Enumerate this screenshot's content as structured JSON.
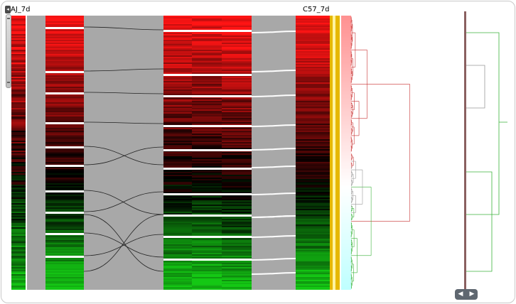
{
  "window": {
    "title": ""
  },
  "sample_labels": {
    "left": "AJ_7d",
    "right": "C57_7d"
  },
  "controls": {
    "collapse_glyph": "◂",
    "scroll_left_glyph": "◀",
    "scroll_right_glyph": "▶"
  },
  "icons": {
    "collapse": "collapse-left-icon",
    "scroll_left": "arrow-left-icon",
    "scroll_right": "arrow-right-icon"
  },
  "colors": {
    "up": "#ff1a1a",
    "mid": "#000000",
    "down": "#1ea51e",
    "ribbon": "#a8a8a8",
    "highlight": "#e6b800",
    "tree_red": "#c83232",
    "tree_green": "#3cb43c",
    "tree_grey": "#999999"
  }
}
